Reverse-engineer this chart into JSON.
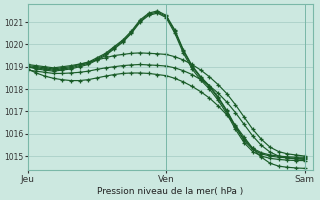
{
  "bg_color": "#cce8e0",
  "grid_color": "#aad0c8",
  "line_color": "#1a5c28",
  "xlabel": "Pression niveau de la mer( hPa )",
  "day_labels": [
    "Jeu",
    "Ven",
    "Sam"
  ],
  "day_positions": [
    0,
    16,
    32
  ],
  "xlim": [
    0,
    33
  ],
  "ylim": [
    1014.4,
    1021.8
  ],
  "yticks": [
    1015,
    1016,
    1017,
    1018,
    1019,
    1020,
    1021
  ],
  "lines": [
    [
      1019.0,
      1018.9,
      1018.85,
      1018.8,
      1018.85,
      1018.9,
      1019.0,
      1019.1,
      1019.3,
      1019.5,
      1019.8,
      1020.1,
      1020.5,
      1021.0,
      1021.3,
      1021.4,
      1021.2,
      1020.5,
      1019.6,
      1018.9,
      1018.4,
      1018.0,
      1017.5,
      1016.9,
      1016.2,
      1015.6,
      1015.2,
      1015.0,
      1014.9,
      1014.85,
      1014.82,
      1014.8,
      1014.8
    ],
    [
      1019.0,
      1018.95,
      1018.9,
      1018.85,
      1018.9,
      1018.95,
      1019.05,
      1019.15,
      1019.35,
      1019.55,
      1019.85,
      1020.15,
      1020.55,
      1021.05,
      1021.35,
      1021.45,
      1021.25,
      1020.6,
      1019.7,
      1019.0,
      1018.5,
      1018.1,
      1017.6,
      1017.0,
      1016.3,
      1015.7,
      1015.3,
      1015.1,
      1015.0,
      1014.95,
      1014.92,
      1014.9,
      1014.9
    ],
    [
      1019.05,
      1019.0,
      1018.95,
      1018.9,
      1018.95,
      1019.0,
      1019.1,
      1019.2,
      1019.4,
      1019.6,
      1019.9,
      1020.2,
      1020.6,
      1021.1,
      1021.4,
      1021.5,
      1021.3,
      1020.65,
      1019.75,
      1019.05,
      1018.55,
      1018.15,
      1017.65,
      1017.05,
      1016.35,
      1015.75,
      1015.35,
      1015.15,
      1015.05,
      1015.0,
      1014.97,
      1014.95,
      1014.95
    ],
    [
      1019.1,
      1019.05,
      1019.0,
      1018.95,
      1019.0,
      1019.05,
      1019.12,
      1019.2,
      1019.3,
      1019.4,
      1019.5,
      1019.55,
      1019.6,
      1019.62,
      1019.6,
      1019.58,
      1019.55,
      1019.45,
      1019.3,
      1019.1,
      1018.85,
      1018.55,
      1018.2,
      1017.8,
      1017.3,
      1016.75,
      1016.2,
      1015.75,
      1015.4,
      1015.2,
      1015.1,
      1015.05,
      1015.0
    ],
    [
      1018.85,
      1018.8,
      1018.75,
      1018.7,
      1018.7,
      1018.72,
      1018.75,
      1018.8,
      1018.88,
      1018.95,
      1019.0,
      1019.05,
      1019.08,
      1019.1,
      1019.08,
      1019.06,
      1019.03,
      1018.95,
      1018.82,
      1018.65,
      1018.42,
      1018.15,
      1017.82,
      1017.42,
      1016.95,
      1016.42,
      1015.9,
      1015.48,
      1015.18,
      1015.0,
      1014.92,
      1014.87,
      1014.85
    ],
    [
      1018.9,
      1018.72,
      1018.58,
      1018.48,
      1018.42,
      1018.38,
      1018.38,
      1018.42,
      1018.5,
      1018.58,
      1018.65,
      1018.7,
      1018.72,
      1018.72,
      1018.7,
      1018.65,
      1018.6,
      1018.48,
      1018.32,
      1018.12,
      1017.88,
      1017.6,
      1017.25,
      1016.85,
      1016.38,
      1015.85,
      1015.35,
      1014.95,
      1014.68,
      1014.55,
      1014.5,
      1014.47,
      1014.45
    ]
  ]
}
